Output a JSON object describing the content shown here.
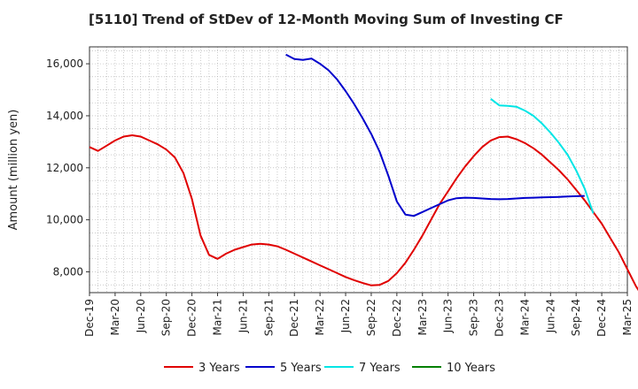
{
  "chart_data": {
    "type": "line",
    "title": "[5110]  Trend of StDev of 12-Month Moving Sum of Investing CF",
    "xlabel": "",
    "ylabel": "Amount (million yen)",
    "ylim": [
      7200,
      16650
    ],
    "yticks": [
      8000,
      10000,
      12000,
      14000,
      16000
    ],
    "ytick_labels": [
      "8,000",
      "10,000",
      "12,000",
      "14,000",
      "16,000"
    ],
    "xtick_labels": [
      "Dec-19",
      "Mar-20",
      "Jun-20",
      "Sep-20",
      "Dec-20",
      "Mar-21",
      "Jun-21",
      "Sep-21",
      "Dec-21",
      "Mar-22",
      "Jun-22",
      "Sep-22",
      "Dec-22",
      "Mar-23",
      "Jun-23",
      "Sep-23",
      "Dec-23",
      "Mar-24",
      "Jun-24",
      "Sep-24",
      "Dec-24",
      "Mar-25"
    ],
    "grid": true,
    "legend_position": "bottom",
    "series": [
      {
        "name": "3 Years",
        "color": "#e00000",
        "start": "Dec-19",
        "values": [
          12800,
          12650,
          12850,
          13050,
          13200,
          13250,
          13200,
          13050,
          12900,
          12700,
          12400,
          11800,
          10800,
          9400,
          8650,
          8500,
          8700,
          8850,
          8950,
          9050,
          9080,
          9050,
          8980,
          8850,
          8700,
          8550,
          8400,
          8250,
          8100,
          7950,
          7800,
          7680,
          7570,
          7480,
          7500,
          7650,
          7950,
          8350,
          8850,
          9400,
          10000,
          10600,
          11100,
          11600,
          12050,
          12450,
          12800,
          13050,
          13180,
          13200,
          13100,
          12950,
          12750,
          12500,
          12200,
          11900,
          11550,
          11150,
          10750,
          10300,
          9850,
          9300,
          8750,
          8100,
          7450,
          6950,
          6550
        ]
      },
      {
        "name": "5 Years",
        "color": "#0000cc",
        "start": "Nov-21",
        "values": [
          16350,
          16180,
          16150,
          16200,
          16000,
          15750,
          15400,
          14950,
          14450,
          13900,
          13300,
          12600,
          11700,
          10700,
          10200,
          10150,
          10300,
          10450,
          10600,
          10750,
          10830,
          10850,
          10840,
          10820,
          10800,
          10790,
          10800,
          10820,
          10840,
          10850,
          10860,
          10870,
          10880,
          10900,
          10910,
          10920
        ]
      },
      {
        "name": "7 Years",
        "color": "#00e5e5",
        "start": "Nov-23",
        "values": [
          14650,
          14400,
          14380,
          14350,
          14200,
          14000,
          13700,
          13350,
          12950,
          12500,
          11900,
          11200,
          10250
        ]
      },
      {
        "name": "10 Years",
        "color": "#008000",
        "start": "",
        "values": []
      }
    ]
  }
}
